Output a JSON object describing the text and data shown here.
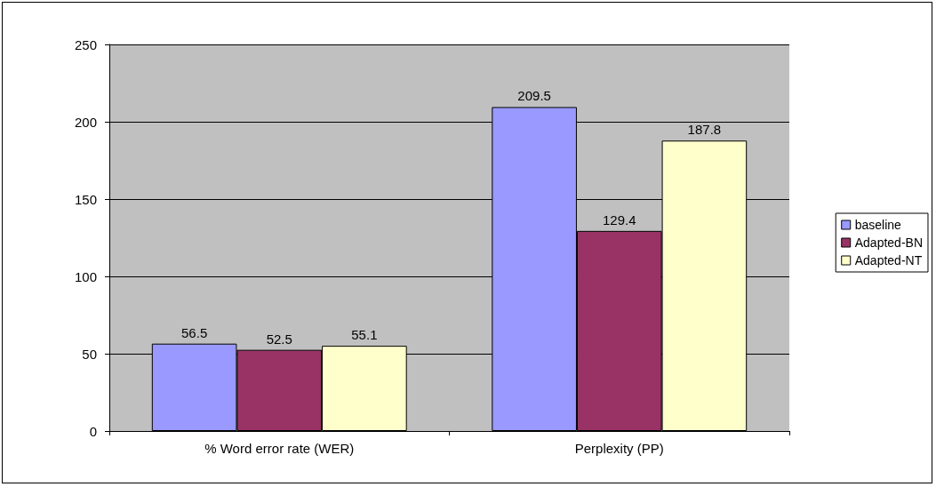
{
  "chart_data": {
    "type": "bar",
    "categories": [
      "% Word error rate (WER)",
      "Perplexity (PP)"
    ],
    "series": [
      {
        "name": "baseline",
        "color": "#9999ff",
        "values": [
          56.5,
          209.5
        ]
      },
      {
        "name": "Adapted-BN",
        "color": "#993366",
        "values": [
          52.5,
          129.4
        ]
      },
      {
        "name": "Adapted-NT",
        "color": "#ffffcc",
        "values": [
          55.1,
          187.8
        ]
      }
    ],
    "ylim": [
      0,
      250
    ],
    "yticks": [
      0,
      50,
      100,
      150,
      200,
      250
    ],
    "grid": "y",
    "legend": "right",
    "data_labels": true
  }
}
